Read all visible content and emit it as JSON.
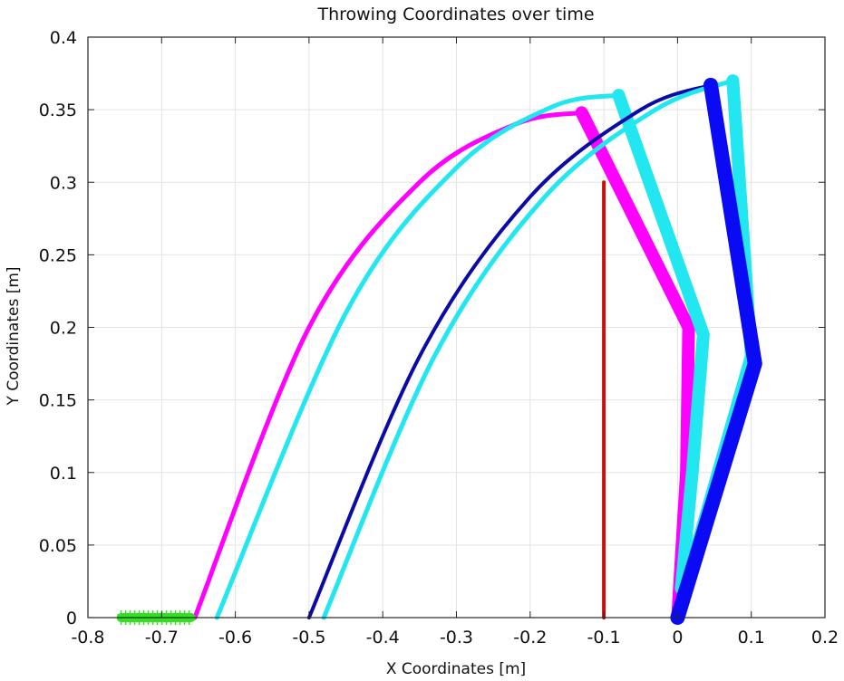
{
  "chart_data": {
    "type": "line",
    "title": "Throwing Coordinates over time",
    "xlabel": "X Coordinates [m]",
    "ylabel": "Y Coordinates [m]",
    "xlim": [
      -0.8,
      0.2
    ],
    "ylim": [
      0,
      0.4
    ],
    "xticks": [
      "-0.8",
      "-0.7",
      "-0.6",
      "-0.5",
      "-0.4",
      "-0.3",
      "-0.2",
      "-0.1",
      "0",
      "0.1",
      "0.2"
    ],
    "yticks": [
      "0",
      "0.05",
      "0.1",
      "0.15",
      "0.2",
      "0.25",
      "0.3",
      "0.35",
      "0.4"
    ],
    "grid": true,
    "legend": null,
    "series": [
      {
        "name": "magenta-trajectory",
        "color": "#ff00ff",
        "width": 5,
        "kind": "parabola",
        "x": [
          -0.655,
          -0.5,
          -0.35,
          -0.22,
          -0.13
        ],
        "y": [
          0,
          0.2,
          0.3,
          0.34,
          0.348
        ]
      },
      {
        "name": "magenta-arm",
        "color": "#ff00ff",
        "width": 14,
        "kind": "polyline",
        "x": [
          -0.13,
          0.015,
          0.012,
          0.0
        ],
        "y": [
          0.348,
          0.2,
          0.1,
          0
        ]
      },
      {
        "name": "cyan-trajectory-1",
        "color": "#22e6f0",
        "width": 5,
        "kind": "parabola",
        "x": [
          -0.625,
          -0.45,
          -0.3,
          -0.17,
          -0.08
        ],
        "y": [
          0,
          0.21,
          0.31,
          0.352,
          0.36
        ]
      },
      {
        "name": "cyan-arm-1",
        "color": "#22e6f0",
        "width": 14,
        "kind": "polyline",
        "x": [
          -0.08,
          0.035,
          0.02,
          0.005
        ],
        "y": [
          0.36,
          0.195,
          0.1,
          0.02
        ]
      },
      {
        "name": "navy-trajectory",
        "color": "#0a0aa8",
        "width": 4,
        "kind": "parabola",
        "x": [
          -0.5,
          -0.35,
          -0.2,
          -0.05,
          0.045
        ],
        "y": [
          0,
          0.18,
          0.29,
          0.35,
          0.367
        ]
      },
      {
        "name": "cyan-trajectory-2",
        "color": "#22e6f0",
        "width": 5,
        "kind": "parabola",
        "x": [
          -0.48,
          -0.33,
          -0.18,
          -0.03,
          0.075
        ],
        "y": [
          0,
          0.18,
          0.29,
          0.35,
          0.37
        ]
      },
      {
        "name": "cyan-arm-2",
        "color": "#22e6f0",
        "width": 14,
        "kind": "polyline",
        "x": [
          0.075,
          0.1,
          0.01
        ],
        "y": [
          0.37,
          0.18,
          0.02
        ]
      },
      {
        "name": "blue-arm",
        "color": "#0a0af5",
        "width": 16,
        "kind": "polyline",
        "x": [
          0.045,
          0.105,
          0.0
        ],
        "y": [
          0.367,
          0.175,
          0
        ]
      },
      {
        "name": "red-target-line",
        "color": "#c81010",
        "width": 4,
        "kind": "polyline",
        "x": [
          -0.1,
          -0.1
        ],
        "y": [
          0,
          0.3
        ]
      },
      {
        "name": "green-release-markers",
        "color": "#33e022",
        "width": 10,
        "kind": "markers",
        "x": [
          -0.755,
          -0.66
        ],
        "y": [
          0,
          0
        ]
      }
    ]
  }
}
